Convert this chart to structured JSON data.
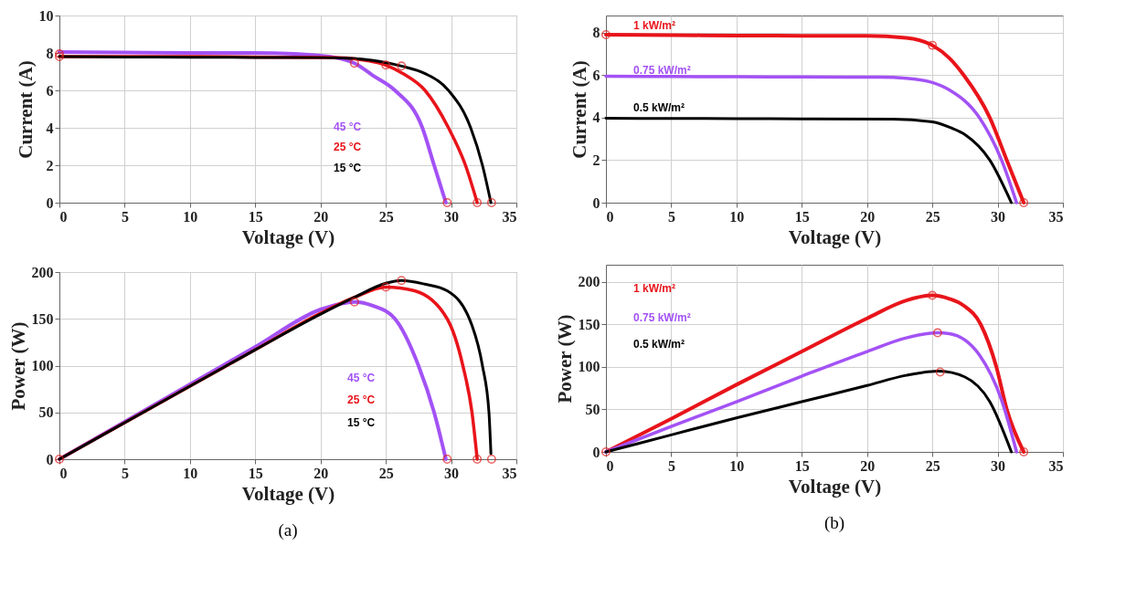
{
  "chart_data": [
    {
      "type": "line",
      "xlabel": "Voltage (V)",
      "ylabel": "Current (A)",
      "xlim": [
        0,
        35
      ],
      "ylim": [
        0,
        10
      ],
      "xticks": [
        0,
        5,
        10,
        15,
        20,
        25,
        30,
        35
      ],
      "yticks": [
        0,
        2,
        4,
        6,
        8,
        10
      ],
      "grid": true,
      "series": [
        {
          "name": "45 °C",
          "color": "#a352f5",
          "x": [
            0,
            5,
            10,
            15,
            18,
            20,
            21.5,
            22.6,
            24,
            25.7,
            27.8,
            28.7,
            29.6
          ],
          "values": [
            8.05,
            8.03,
            8.0,
            8.0,
            7.95,
            7.85,
            7.7,
            7.45,
            6.8,
            6,
            4,
            2,
            0
          ]
        },
        {
          "name": "25 °C",
          "color": "#e8141a",
          "x": [
            0,
            5,
            10,
            15,
            20,
            21.5,
            23.5,
            25,
            26.3,
            28,
            29.8,
            31.1,
            32
          ],
          "values": [
            7.8,
            7.8,
            7.8,
            7.78,
            7.76,
            7.75,
            7.6,
            7.35,
            6.9,
            6,
            4,
            2,
            0
          ]
        },
        {
          "name": "15 °C",
          "color": "#000000",
          "x": [
            0,
            5,
            10,
            15,
            20,
            22,
            24.5,
            26.2,
            28,
            29.8,
            31.5,
            32.4,
            33.05
          ],
          "values": [
            7.8,
            7.78,
            7.77,
            7.76,
            7.75,
            7.72,
            7.55,
            7.3,
            6.9,
            6,
            4,
            2,
            0
          ]
        },
        {
          "type": "scatter",
          "marker": "circle",
          "color": "#e02020",
          "x": [
            0,
            0,
            22.6,
            25,
            26.2,
            29.7,
            32,
            33.1
          ],
          "values": [
            7.95,
            7.8,
            7.45,
            7.35,
            7.3,
            0,
            0,
            0
          ]
        }
      ]
    },
    {
      "type": "line",
      "xlabel": "Voltage (V)",
      "ylabel": "Power (W)",
      "xlim": [
        0,
        35
      ],
      "ylim": [
        0,
        200
      ],
      "xticks": [
        0,
        5,
        10,
        15,
        20,
        25,
        30,
        35
      ],
      "yticks": [
        0,
        50,
        100,
        150,
        200
      ],
      "grid": true,
      "annotations": [
        "(a)"
      ],
      "series": [
        {
          "name": "45 °C",
          "color": "#a352f5",
          "x": [
            0,
            5,
            10,
            15,
            20,
            21.5,
            22.6,
            24,
            25.7,
            27.5,
            28.7,
            29.6
          ],
          "values": [
            0,
            40,
            80,
            120,
            160,
            166,
            168,
            164,
            150,
            100,
            50,
            0
          ]
        },
        {
          "name": "25 °C",
          "color": "#e8141a",
          "x": [
            0,
            5,
            10,
            15,
            20,
            22.6,
            25,
            27.2,
            29.7,
            30.9,
            31.6,
            32
          ],
          "values": [
            0,
            39,
            78,
            117,
            156,
            173,
            184,
            180,
            150,
            100,
            50,
            0
          ]
        },
        {
          "name": "15 °C",
          "color": "#000000",
          "x": [
            0,
            5,
            10,
            15,
            20,
            22.6,
            25,
            26.2,
            28,
            29.7,
            31.6,
            32.4,
            32.9,
            33.05
          ],
          "values": [
            0,
            39,
            78,
            117,
            155,
            173,
            188,
            191,
            187,
            180,
            143,
            100,
            50,
            6
          ]
        },
        {
          "type": "scatter",
          "marker": "circle",
          "color": "#e02020",
          "x": [
            0,
            22.6,
            25,
            26.2,
            29.7,
            32,
            33.1
          ],
          "values": [
            0,
            168,
            184,
            191,
            0,
            0,
            0
          ]
        }
      ]
    },
    {
      "type": "line",
      "xlabel": "Voltage (V)",
      "ylabel": "Current (A)",
      "xlim": [
        0,
        35
      ],
      "ylim": [
        0,
        8.8
      ],
      "xticks": [
        0,
        5,
        10,
        15,
        20,
        25,
        30,
        35
      ],
      "yticks": [
        0,
        2,
        4,
        6,
        8
      ],
      "grid": true,
      "series": [
        {
          "name": "1 kW/m²",
          "color": "#e8141a",
          "x": [
            0,
            5,
            10,
            15,
            20,
            23,
            25,
            26.3,
            27.4,
            29.4,
            30.7,
            32
          ],
          "values": [
            7.9,
            7.88,
            7.86,
            7.85,
            7.85,
            7.75,
            7.4,
            6.8,
            6,
            4,
            2,
            0
          ]
        },
        {
          "name": "0.75 kW/m²",
          "color": "#a352f5",
          "x": [
            0,
            5,
            10,
            15,
            21,
            23,
            25,
            26.3,
            28.6,
            30.3,
            31.45
          ],
          "values": [
            5.95,
            5.93,
            5.92,
            5.91,
            5.9,
            5.85,
            5.65,
            5.3,
            4,
            2,
            0
          ]
        },
        {
          "name": "0.5 kW/m²",
          "color": "#000000",
          "x": [
            0,
            5,
            10,
            15,
            22,
            25,
            26.5,
            27.5,
            29.4,
            31.05
          ],
          "values": [
            3.97,
            3.96,
            3.95,
            3.94,
            3.93,
            3.8,
            3.5,
            3.2,
            2,
            0
          ]
        },
        {
          "type": "scatter",
          "marker": "circle",
          "color": "#e02020",
          "x": [
            0,
            25,
            32
          ],
          "values": [
            7.9,
            7.4,
            0
          ]
        }
      ]
    },
    {
      "type": "line",
      "xlabel": "Voltage (V)",
      "ylabel": "Power (W)",
      "xlim": [
        0,
        35
      ],
      "ylim": [
        0,
        220
      ],
      "xticks": [
        0,
        5,
        10,
        15,
        20,
        25,
        30,
        35
      ],
      "yticks": [
        0,
        50,
        100,
        150,
        200
      ],
      "grid": true,
      "annotations": [
        "(b)"
      ],
      "series": [
        {
          "name": "1 kW/m²",
          "color": "#e8141a",
          "x": [
            0,
            5,
            10,
            15,
            20,
            23,
            25,
            26.3,
            27.4,
            28.7,
            29.9,
            30.7,
            32
          ],
          "values": [
            0,
            39,
            79,
            118,
            157,
            178,
            184,
            180,
            172,
            150,
            100,
            50,
            0
          ]
        },
        {
          "name": "0.75 kW/m²",
          "color": "#a352f5",
          "x": [
            0,
            5,
            10,
            15,
            20,
            23,
            25.4,
            26.3,
            28.6,
            30.3,
            31.45
          ],
          "values": [
            0,
            30,
            59,
            89,
            118,
            134,
            140,
            139,
            114,
            61,
            0
          ]
        },
        {
          "name": "0.5 kW/m²",
          "color": "#000000",
          "x": [
            0,
            5,
            10,
            15,
            20,
            23,
            25.5,
            27.5,
            29.4,
            31.05
          ],
          "values": [
            0,
            20,
            40,
            59,
            78,
            90,
            95,
            88,
            59,
            0
          ]
        },
        {
          "type": "scatter",
          "marker": "circle",
          "color": "#e02020",
          "x": [
            0,
            25,
            25.4,
            25.6,
            32
          ],
          "values": [
            0,
            184,
            140,
            94,
            0
          ]
        }
      ]
    }
  ]
}
